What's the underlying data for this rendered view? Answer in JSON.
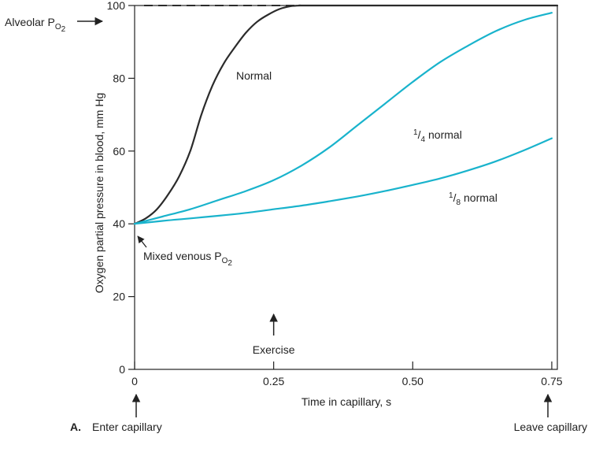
{
  "chart_data": {
    "type": "line",
    "xlabel": "Time in capillary, s",
    "ylabel": "Oxygen partial pressure in blood, mm Hg",
    "xlim": [
      0,
      0.76
    ],
    "ylim": [
      0,
      100
    ],
    "x_ticks": [
      0,
      0.25,
      0.5,
      0.75
    ],
    "x_tick_labels": [
      "0",
      "0.25",
      "0.50",
      "0.75"
    ],
    "y_ticks": [
      0,
      20,
      40,
      60,
      80,
      100
    ],
    "y_tick_labels": [
      "0",
      "20",
      "40",
      "60",
      "80",
      "100"
    ],
    "colors": {
      "normal": "#2b2b2b",
      "reduced": "#19b3cc",
      "axis": "#222222"
    },
    "series": [
      {
        "name": "Normal",
        "label": "Normal",
        "points": [
          [
            0,
            40
          ],
          [
            0.02,
            41.5
          ],
          [
            0.04,
            44
          ],
          [
            0.06,
            48
          ],
          [
            0.08,
            53
          ],
          [
            0.1,
            60
          ],
          [
            0.12,
            70
          ],
          [
            0.14,
            78
          ],
          [
            0.16,
            84
          ],
          [
            0.18,
            88.5
          ],
          [
            0.2,
            92.5
          ],
          [
            0.22,
            95.5
          ],
          [
            0.24,
            97.5
          ],
          [
            0.26,
            99
          ],
          [
            0.28,
            99.8
          ],
          [
            0.3,
            100
          ],
          [
            0.34,
            100
          ],
          [
            0.76,
            100
          ]
        ]
      },
      {
        "name": "1/4 normal",
        "label_num": "1",
        "label_den": "4",
        "label_rest": "normal",
        "points": [
          [
            0,
            40
          ],
          [
            0.05,
            42
          ],
          [
            0.1,
            44
          ],
          [
            0.15,
            46.5
          ],
          [
            0.2,
            49
          ],
          [
            0.25,
            52
          ],
          [
            0.3,
            56
          ],
          [
            0.35,
            61
          ],
          [
            0.4,
            67
          ],
          [
            0.45,
            73
          ],
          [
            0.5,
            79
          ],
          [
            0.55,
            84.5
          ],
          [
            0.6,
            89
          ],
          [
            0.65,
            93
          ],
          [
            0.7,
            96
          ],
          [
            0.75,
            98
          ]
        ]
      },
      {
        "name": "1/8 normal",
        "label_num": "1",
        "label_den": "8",
        "label_rest": "normal",
        "points": [
          [
            0,
            40
          ],
          [
            0.05,
            40.8
          ],
          [
            0.1,
            41.5
          ],
          [
            0.15,
            42.2
          ],
          [
            0.2,
            43
          ],
          [
            0.25,
            44
          ],
          [
            0.3,
            45
          ],
          [
            0.35,
            46.2
          ],
          [
            0.4,
            47.5
          ],
          [
            0.45,
            49
          ],
          [
            0.5,
            50.7
          ],
          [
            0.55,
            52.5
          ],
          [
            0.6,
            54.7
          ],
          [
            0.65,
            57.2
          ],
          [
            0.7,
            60.2
          ],
          [
            0.75,
            63.5
          ]
        ]
      }
    ],
    "alveolar_line": {
      "y": 100,
      "dashed_to_x": 0.34
    },
    "annotations": {
      "alveolar_prefix": "Alveolar P",
      "alveolar_sub": "O",
      "alveolar_subsub": "2",
      "mixed_venous_prefix": "Mixed venous P",
      "mixed_venous_sub": "O",
      "mixed_venous_subsub": "2",
      "exercise": "Exercise",
      "exercise_x": 0.25,
      "enter_capillary": "Enter capillary",
      "leave_capillary": "Leave capillary",
      "panel_label": "A."
    }
  }
}
